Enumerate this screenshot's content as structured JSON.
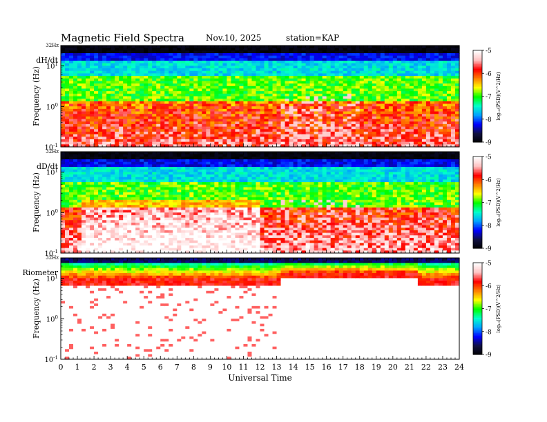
{
  "header": {
    "title": "Magnetic  Field  Spectra",
    "date": "Nov.10, 2025",
    "station": "station=KAP"
  },
  "colors": {
    "scale": [
      "#000000",
      "#101040",
      "#0000ff",
      "#00a0ff",
      "#00ffcc",
      "#00ff00",
      "#ffff00",
      "#ff8000",
      "#ff0000",
      "#ffc0c0",
      "#ffffff"
    ]
  },
  "chart_data": [
    {
      "type": "heatmap",
      "panel_label": "dH/dt",
      "ylabel": "Frequency  (Hz)",
      "ytop_label": "32Hz",
      "yticks": [
        {
          "base": "10",
          "exp": "-1"
        },
        {
          "base": "10",
          "exp": "0"
        },
        {
          "base": "10",
          "exp": "1"
        }
      ],
      "ylim": [
        0.1,
        32
      ],
      "yscale": "log",
      "xlim": [
        0,
        24
      ],
      "colorbar": {
        "ticks": [
          "-5",
          "-6",
          "-7",
          "-8",
          "-9"
        ],
        "label": "log₁₀(PSD)(V^2/Hz)",
        "range": [
          -9,
          -5
        ]
      },
      "description_values": {
        "background_low_freq_log_psd": -6.0,
        "mid_freq_log_psd": -7.0,
        "high_freq_log_psd": -8.5,
        "top_band_log_psd": -9.0
      }
    },
    {
      "type": "heatmap",
      "panel_label": "dD/dt",
      "ylabel": "Frequency  (Hz)",
      "ytop_label": "32Hz",
      "yticks": [
        {
          "base": "10",
          "exp": "-1"
        },
        {
          "base": "10",
          "exp": "0"
        },
        {
          "base": "10",
          "exp": "1"
        }
      ],
      "ylim": [
        0.1,
        32
      ],
      "yscale": "log",
      "xlim": [
        0,
        24
      ],
      "colorbar": {
        "ticks": [
          "-5",
          "-6",
          "-7",
          "-8",
          "-9"
        ],
        "label": "log₁₀(PSD)(V^2/Hz)",
        "range": [
          -9,
          -5
        ]
      },
      "description_values": {
        "background_low_freq_log_psd": -5.8,
        "mid_freq_log_psd": -7.0,
        "high_freq_log_psd": -8.5,
        "top_band_log_psd": -9.0
      }
    },
    {
      "type": "heatmap",
      "panel_label": "Riometer",
      "ylabel": "Frequency  (Hz)",
      "ytop_label": "32Hz",
      "yticks": [
        {
          "base": "10",
          "exp": "-1"
        },
        {
          "base": "10",
          "exp": "0"
        },
        {
          "base": "10",
          "exp": "1"
        }
      ],
      "ylim": [
        0.1,
        32
      ],
      "yscale": "log",
      "xlim": [
        0,
        24
      ],
      "colorbar": {
        "ticks": [
          "-5",
          "-6",
          "-7",
          "-8",
          "-9"
        ],
        "label": "log₁₀(PSD)(V^2/Hz)",
        "range": [
          -9,
          -5
        ]
      },
      "description_values": {
        "low_freq_log_psd": -5.0,
        "band_edge_log_psd": -6.0,
        "top_band_log_psd": -8.5
      }
    }
  ],
  "xaxis": {
    "label": "Universal  Time",
    "ticks": [
      "0",
      "1",
      "2",
      "3",
      "4",
      "5",
      "6",
      "7",
      "8",
      "9",
      "10",
      "11",
      "12",
      "13",
      "14",
      "15",
      "16",
      "17",
      "18",
      "19",
      "20",
      "21",
      "22",
      "23",
      "24"
    ]
  }
}
